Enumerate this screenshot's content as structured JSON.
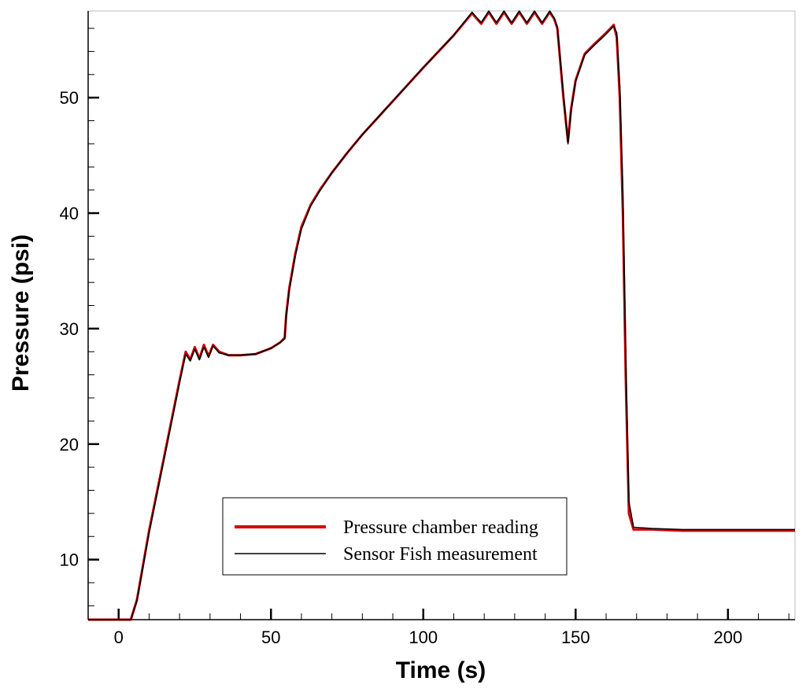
{
  "chart_data": {
    "type": "line",
    "xlabel": "Time (s)",
    "ylabel": "Pressure (psi)",
    "xlim": [
      -10,
      222
    ],
    "ylim": [
      4.8,
      57.5
    ],
    "x_major_ticks": [
      0,
      50,
      100,
      150,
      200
    ],
    "x_tick_labels": [
      "0",
      "50",
      "100",
      "150",
      "200"
    ],
    "y_major_ticks": [
      10,
      20,
      30,
      40,
      50
    ],
    "y_tick_labels": [
      "10",
      "20",
      "30",
      "40",
      "50"
    ],
    "grid": false,
    "legend_position": "bottom-center",
    "colors": {
      "pressure_chamber": "#d40000",
      "sensor_fish": "#000000"
    },
    "series": [
      {
        "name": "Pressure chamber reading",
        "x": [
          -10,
          4,
          6,
          10,
          15,
          20,
          22,
          23.5,
          25,
          26.5,
          28,
          29.5,
          31,
          33,
          36,
          40,
          45,
          50,
          53,
          54.5,
          55,
          56,
          58,
          60,
          63,
          66,
          70,
          75,
          80,
          90,
          100,
          110,
          116,
          119,
          121.5,
          124,
          126.5,
          129,
          131.5,
          134,
          136.5,
          139,
          141.5,
          143,
          144,
          146,
          147.5,
          148.5,
          150,
          153,
          156,
          160,
          162.5,
          163.5,
          164.5,
          165.5,
          166.5,
          167.5,
          169,
          175,
          185,
          200,
          210,
          222
        ],
        "y": [
          4.8,
          4.8,
          6.5,
          12.5,
          19,
          25.5,
          28,
          27.3,
          28.4,
          27.4,
          28.6,
          27.6,
          28.6,
          28.0,
          27.7,
          27.7,
          27.8,
          28.3,
          28.8,
          29.2,
          31.2,
          33.5,
          36.5,
          38.8,
          40.7,
          42.0,
          43.5,
          45.2,
          46.8,
          49.7,
          52.6,
          55.4,
          57.3,
          56.4,
          57.4,
          56.4,
          57.4,
          56.4,
          57.4,
          56.4,
          57.4,
          56.4,
          57.4,
          56.8,
          56.0,
          50.0,
          46.2,
          49.0,
          51.5,
          53.8,
          54.6,
          55.6,
          56.3,
          55.2,
          50.0,
          40.0,
          25.0,
          14.0,
          12.6,
          12.6,
          12.5,
          12.5,
          12.5,
          12.5
        ]
      },
      {
        "name": "Sensor Fish measurement",
        "x": [
          -10,
          4,
          6,
          10,
          15,
          20,
          22,
          23.5,
          25,
          26.5,
          28,
          29.5,
          31,
          33,
          36,
          40,
          45,
          50,
          53,
          54.5,
          55,
          56,
          58,
          60,
          63,
          66,
          70,
          75,
          80,
          90,
          100,
          110,
          116,
          119,
          121.5,
          124,
          126.5,
          129,
          131.5,
          134,
          136.5,
          139,
          141.5,
          143,
          144,
          146,
          147.5,
          148.5,
          150,
          153,
          156,
          160,
          162.5,
          163.5,
          164.5,
          165.5,
          166.5,
          167.5,
          169,
          175,
          185,
          200,
          210,
          222
        ],
        "y": [
          4.8,
          4.8,
          6.4,
          12.3,
          18.8,
          25.3,
          27.8,
          27.2,
          28.2,
          27.3,
          28.4,
          27.5,
          28.5,
          27.9,
          27.7,
          27.7,
          27.8,
          28.3,
          28.8,
          29.1,
          31.0,
          33.3,
          36.3,
          38.6,
          40.6,
          41.9,
          43.5,
          45.2,
          46.8,
          49.7,
          52.6,
          55.4,
          57.4,
          56.5,
          57.5,
          56.5,
          57.5,
          56.5,
          57.5,
          56.5,
          57.5,
          56.5,
          57.5,
          56.9,
          56.1,
          50.3,
          46.0,
          48.8,
          51.4,
          53.7,
          54.5,
          55.5,
          56.2,
          55.6,
          51.0,
          42.0,
          27.0,
          15.0,
          12.8,
          12.7,
          12.6,
          12.6,
          12.6,
          12.6
        ]
      }
    ]
  }
}
